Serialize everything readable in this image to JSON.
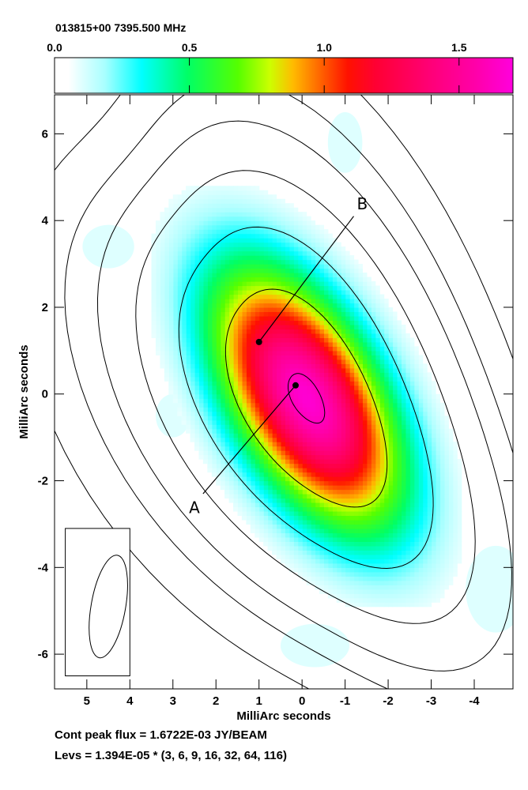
{
  "chart_data": {
    "type": "heatmap",
    "title": "013815+00  7395.500 MHz",
    "xlabel": "MilliArc seconds",
    "ylabel": "MilliArc seconds",
    "xlim": [
      5.75,
      -4.9
    ],
    "ylim": [
      -6.8,
      6.9
    ],
    "x_ticks": [
      5,
      4,
      3,
      2,
      1,
      0,
      -1,
      -2,
      -3,
      -4
    ],
    "x_tick_labels": [
      "5",
      "4",
      "3",
      "2",
      "1",
      "0",
      "-1",
      "-2",
      "-3",
      "-4"
    ],
    "y_ticks": [
      6,
      4,
      2,
      0,
      -2,
      -4,
      -6
    ],
    "y_tick_labels": [
      "6",
      "4",
      "2",
      "0",
      "-2",
      "-4",
      "-6"
    ],
    "colorbar": {
      "range": [
        0.0,
        1.7
      ],
      "ticks": [
        0.0,
        0.5,
        1.0,
        1.5
      ],
      "tick_labels": [
        "0.0",
        "0.5",
        "1.0",
        "1.5"
      ],
      "colors": [
        "#ffffff",
        "#00ffff",
        "#00ff66",
        "#ccff00",
        "#ff8800",
        "#ff0033",
        "#ff0099",
        "#ff00dd"
      ]
    },
    "source": {
      "center": [
        -0.1,
        -0.1
      ],
      "major_axis_fwhm_mas": 5.4,
      "minor_axis_fwhm_mas": 2.7,
      "position_angle_deg": 30
    },
    "contour_levels_multipliers": [
      3,
      6,
      9,
      16,
      32,
      64,
      116
    ],
    "beam": {
      "center": [
        4.5,
        -4.9
      ],
      "major_mas": 2.4,
      "minor_mas": 0.8,
      "position_angle_deg": 10
    },
    "points": [
      {
        "name": "A",
        "x": 0.15,
        "y": 0.2
      },
      {
        "name": "B",
        "x": 1.0,
        "y": 1.2
      }
    ],
    "point_labels": [
      "A",
      "B"
    ],
    "footer": [
      "Cont peak flux =  1.6722E-03 JY/BEAM",
      "Levs = 1.394E-05 * (3, 6, 9, 16, 32, 64, 116)"
    ],
    "grid": false,
    "legend": "colorbar-top"
  }
}
